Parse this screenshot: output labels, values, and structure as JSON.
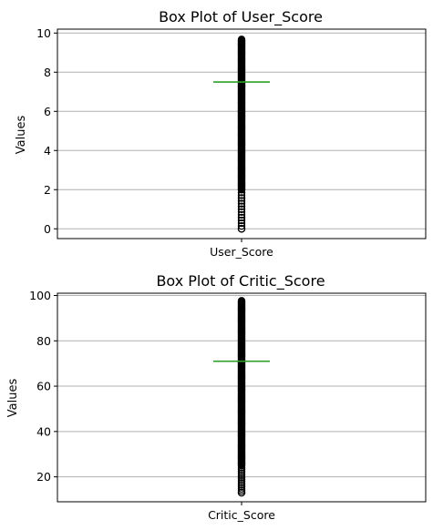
{
  "chart_data": [
    {
      "type": "box",
      "title": "Box Plot of User_Score",
      "ylabel": "Values",
      "categories": [
        "User_Score"
      ],
      "ylim": [
        -0.5,
        10.2
      ],
      "yticks": [
        0,
        2,
        4,
        6,
        8,
        10
      ],
      "grid": "horizontal",
      "median": 7.5,
      "q1": 7.5,
      "q3": 7.5,
      "whisker_low": 7.5,
      "whisker_high": 7.5,
      "outlier_range": [
        0.0,
        9.7
      ],
      "outliers_sparse_below": 2.0,
      "median_color": "#2ca02c",
      "outlier_color": "#000000"
    },
    {
      "type": "box",
      "title": "Box Plot of Critic_Score",
      "ylabel": "Values",
      "categories": [
        "Critic_Score"
      ],
      "ylim": [
        9,
        101
      ],
      "yticks": [
        20,
        40,
        60,
        80,
        100
      ],
      "grid": "horizontal",
      "median": 71,
      "q1": 71,
      "q3": 71,
      "whisker_low": 71,
      "whisker_high": 71,
      "outlier_range": [
        13,
        98
      ],
      "outliers_sparse_below": 25,
      "median_color": "#2ca02c",
      "outlier_color": "#000000"
    }
  ]
}
